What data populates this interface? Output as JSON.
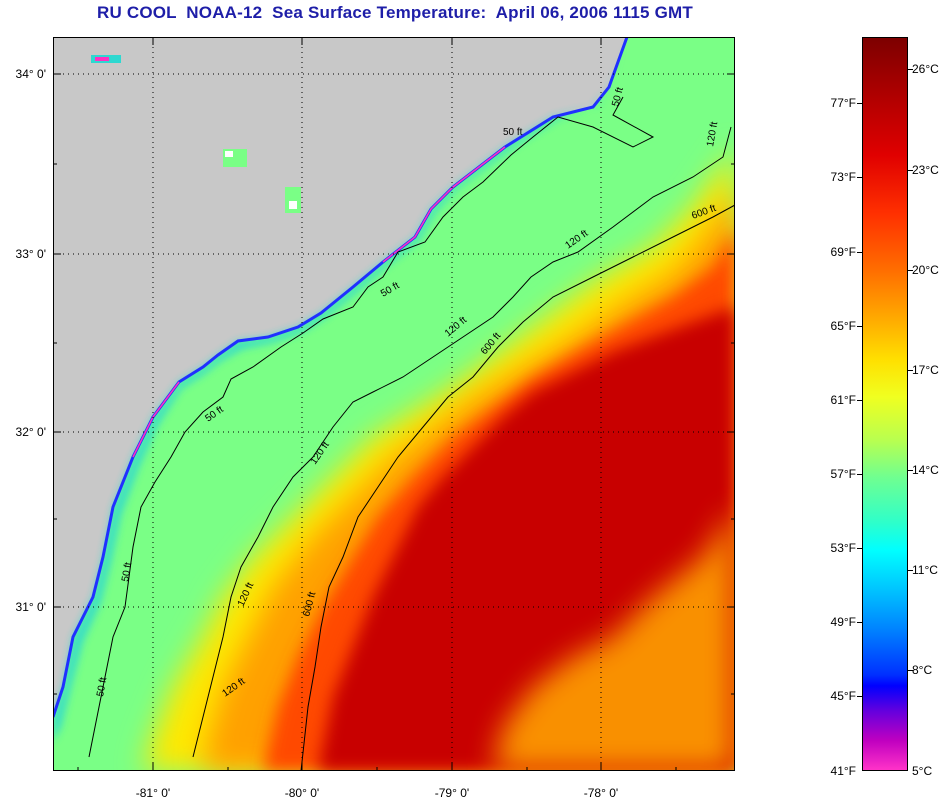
{
  "title": "RU COOL  NOAA-12  Sea Surface Temperature:  April 06, 2006 1115 GMT",
  "map": {
    "latitude_labels": [
      "34° 0'",
      "33° 0'",
      "32° 0'",
      "31° 0'"
    ],
    "longitude_labels": [
      "-81° 0'",
      "-80° 0'",
      "-79° 0'",
      "-78° 0'"
    ],
    "contour_labels": [
      "50 ft",
      "50 ft",
      "50 ft",
      "50 ft",
      "50 ft",
      "50 ft",
      "120 ft",
      "120 ft",
      "120 ft",
      "120 ft",
      "120 ft",
      "120 ft",
      "600 ft",
      "600 ft",
      "600 ft"
    ],
    "colors": {
      "land": "#c8c8c8",
      "warm_core": "#c80000",
      "warm_edge": "#ff4a00",
      "mid_orange": "#ffa000",
      "yellow": "#ffe800",
      "shelf_green": "#7aff86",
      "nearshore_cyan": "#2ed8d0",
      "coast_blue": "#2030ff",
      "coast_magenta": "#ff30c0"
    }
  },
  "colorbar": {
    "fahrenheit_labels": [
      "77°F",
      "73°F",
      "69°F",
      "65°F",
      "61°F",
      "57°F",
      "53°F",
      "49°F",
      "45°F",
      "41°F"
    ],
    "celsius_labels": [
      "26°C",
      "23°C",
      "20°C",
      "17°C",
      "14°C",
      "11°C",
      "8°C",
      "5°C"
    ],
    "range_celsius": [
      5,
      27.7
    ]
  }
}
